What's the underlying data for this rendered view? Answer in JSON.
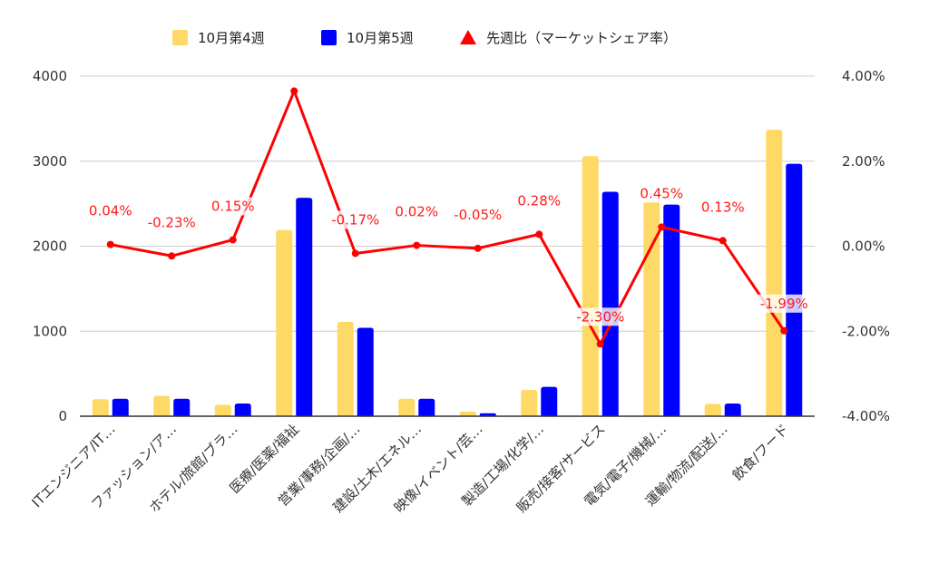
{
  "chart_data": {
    "type": "bar",
    "categories": [
      "ITエンジニア/IT…",
      "ファッション/ア…",
      "ホテル/旅館/ブラ…",
      "医療/医薬/福祉",
      "営業/事務/企画/…",
      "建設/土木/エネル…",
      "映像/イベント/芸…",
      "製造/工場/化学/…",
      "販売/接客/サービス",
      "電気/電子/機械/…",
      "運輸/物流/配送/…",
      "飲食/フード"
    ],
    "series": [
      {
        "name": "10月第4週",
        "type": "bar",
        "axis": "left",
        "color": "#ffd966",
        "values": [
          200,
          240,
          135,
          2190,
          1110,
          205,
          55,
          310,
          3060,
          2520,
          145,
          3370
        ]
      },
      {
        "name": "10月第5週",
        "type": "bar",
        "axis": "left",
        "color": "#0000ff",
        "values": [
          205,
          205,
          150,
          2570,
          1040,
          205,
          35,
          345,
          2640,
          2490,
          150,
          2970
        ]
      },
      {
        "name": "先週比（マーケットシェア率）",
        "type": "line",
        "axis": "right",
        "color": "#ff0000",
        "values": [
          0.04,
          -0.23,
          0.15,
          3.65,
          -0.17,
          0.02,
          -0.05,
          0.28,
          -2.3,
          0.45,
          0.13,
          -1.99
        ],
        "labels": [
          "0.04%",
          "-0.23%",
          "0.15%",
          "",
          "-0.17%",
          "0.02%",
          "-0.05%",
          "0.28%",
          "-2.30%",
          "0.45%",
          "0.13%",
          "-1.99%"
        ]
      }
    ],
    "y_left": {
      "ticks": [
        "0",
        "1000",
        "2000",
        "3000",
        "4000"
      ],
      "ylim": [
        0,
        4000
      ]
    },
    "y_right": {
      "ticks": [
        "-4.00%",
        "-2.00%",
        "0.00%",
        "2.00%",
        "4.00%"
      ],
      "ylim": [
        -4,
        4
      ]
    },
    "legend_position": "top",
    "grid": "horizontal"
  }
}
